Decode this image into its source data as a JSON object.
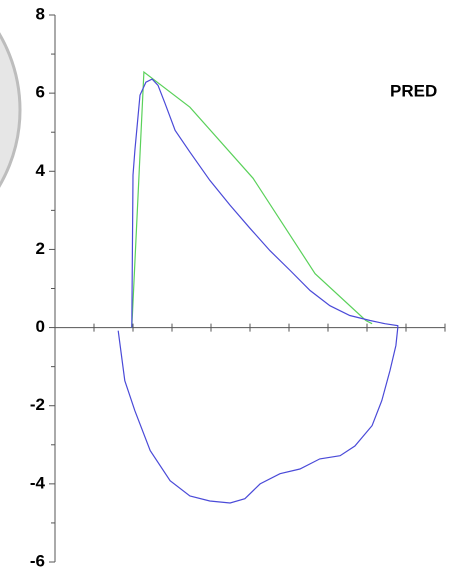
{
  "chart_data": {
    "type": "line",
    "annotation": "PRED",
    "annotation_color": "#008000",
    "xlim": [
      0,
      10
    ],
    "xticks": [
      1,
      2,
      3,
      4,
      5,
      6,
      7,
      8,
      9,
      10
    ],
    "ylim": [
      -6,
      8
    ],
    "yticks": [
      -6,
      -4,
      -2,
      0,
      2,
      4,
      6,
      8
    ],
    "series": [
      {
        "color": "#5ad15a",
        "x": [
          1.97,
          2.28,
          3.46,
          5.08,
          6.67,
          7.97,
          8.13
        ],
        "values": [
          0,
          6.54,
          5.64,
          3.82,
          1.38,
          0.18,
          0.1
        ]
      },
      {
        "color": "#4a4ad8",
        "x": [
          1.97,
          2.0,
          2.05,
          2.18,
          2.33,
          2.49,
          2.64,
          2.82,
          3.08,
          3.46,
          3.97,
          4.49,
          5.0,
          5.51,
          6.03,
          6.54,
          7.05,
          7.56,
          8.08,
          8.46,
          8.79,
          8.79,
          8.74,
          8.59,
          8.38,
          8.13,
          7.69,
          7.31,
          6.79,
          6.28,
          5.77,
          5.26,
          4.87,
          4.49,
          3.97,
          3.46,
          2.95,
          2.44,
          2.05,
          1.79,
          1.62
        ],
        "values": [
          0,
          3.9,
          4.54,
          5.95,
          6.28,
          6.36,
          6.2,
          5.74,
          5.05,
          4.49,
          3.77,
          3.13,
          2.54,
          1.97,
          1.46,
          0.95,
          0.56,
          0.31,
          0.18,
          0.1,
          0.05,
          0,
          -0.46,
          -1.1,
          -1.87,
          -2.51,
          -3.03,
          -3.28,
          -3.36,
          -3.62,
          -3.74,
          -4.0,
          -4.38,
          -4.49,
          -4.44,
          -4.31,
          -3.92,
          -3.15,
          -2.13,
          -1.36,
          -0.08
        ]
      }
    ]
  }
}
